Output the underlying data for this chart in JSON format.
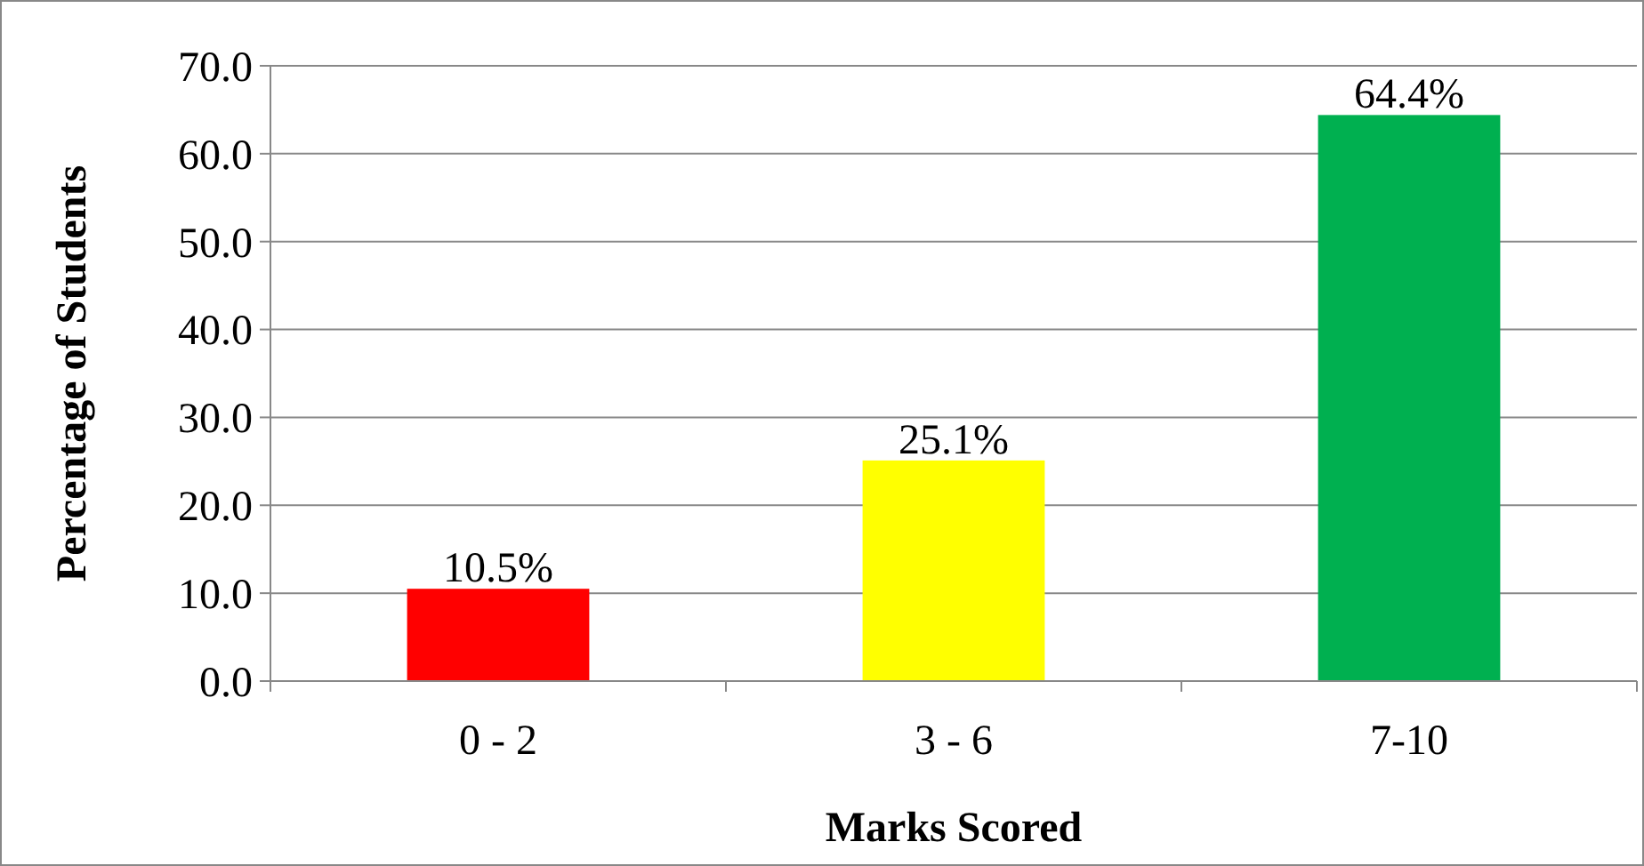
{
  "chart_data": {
    "type": "bar",
    "xlabel": "Marks Scored",
    "ylabel": "Percentage of Students",
    "categories": [
      "0 - 2",
      "3 - 6",
      "7-10"
    ],
    "values": [
      10.5,
      25.1,
      64.4
    ],
    "colors": [
      "#ff0000",
      "#ffff00",
      "#00b050"
    ],
    "value_labels": [
      "10.5%",
      "25.1%",
      "64.4%"
    ],
    "ylim": [
      0,
      70
    ],
    "yticks": [
      {
        "value": 0,
        "label": "0.0"
      },
      {
        "value": 10,
        "label": "10.0"
      },
      {
        "value": 20,
        "label": "20.0"
      },
      {
        "value": 30,
        "label": "30.0"
      },
      {
        "value": 40,
        "label": "40.0"
      },
      {
        "value": 50,
        "label": "50.0"
      },
      {
        "value": 60,
        "label": "60.0"
      },
      {
        "value": 70,
        "label": "70.0"
      }
    ],
    "grid": "y"
  }
}
